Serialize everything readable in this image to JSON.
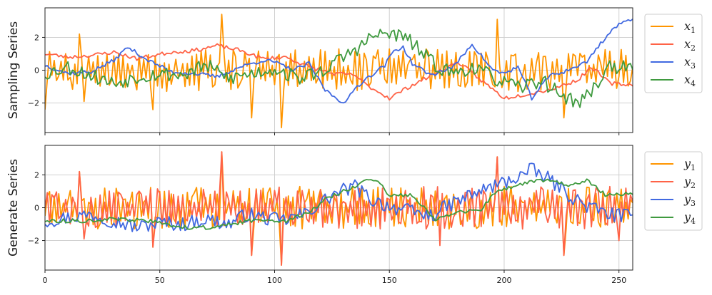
{
  "colors": {
    "orange": "#FF9500",
    "red": "#FF6347",
    "blue": "#4169E1",
    "green": "#3F9A3F"
  },
  "chart_data": [
    {
      "type": "line",
      "ylabel": "Sampling Series",
      "xlim": [
        0,
        256
      ],
      "ylim": [
        -3.8,
        3.8
      ],
      "xticks": [
        0,
        50,
        100,
        150,
        200,
        250
      ],
      "yticks": [
        -2,
        0,
        2
      ],
      "ytick_labels": [
        "−2",
        "0",
        "2"
      ],
      "grid": true,
      "legend_position": "outside-right",
      "series": [
        {
          "name": "x",
          "subscript": "1",
          "color": "#FF9500",
          "seed": 11,
          "kind": "spiky",
          "anchors": [
            [
              0,
              -2.4
            ],
            [
              15,
              2.2
            ],
            [
              17,
              -1.9
            ],
            [
              47,
              -2.4
            ],
            [
              77,
              3.4
            ],
            [
              90,
              -2.9
            ],
            [
              103,
              -3.5
            ],
            [
              197,
              3.1
            ],
            [
              226,
              -2.9
            ],
            [
              256,
              0.2
            ]
          ]
        },
        {
          "name": "x",
          "subscript": "2",
          "color": "#FF6347",
          "seed": 23,
          "kind": "smooth",
          "anchors": [
            [
              0,
              1.0
            ],
            [
              10,
              0.8
            ],
            [
              20,
              0.9
            ],
            [
              30,
              1.1
            ],
            [
              40,
              0.7
            ],
            [
              55,
              1.1
            ],
            [
              65,
              1.2
            ],
            [
              75,
              1.5
            ],
            [
              85,
              1.2
            ],
            [
              95,
              0.7
            ],
            [
              105,
              0.8
            ],
            [
              115,
              0.2
            ],
            [
              125,
              -0.2
            ],
            [
              135,
              -0.3
            ],
            [
              140,
              -0.9
            ],
            [
              150,
              -1.7
            ],
            [
              160,
              -0.9
            ],
            [
              170,
              -0.2
            ],
            [
              180,
              0.5
            ],
            [
              188,
              -0.4
            ],
            [
              200,
              -1.7
            ],
            [
              212,
              -1.4
            ],
            [
              222,
              -1.1
            ],
            [
              232,
              -0.6
            ],
            [
              238,
              0.2
            ],
            [
              246,
              -0.8
            ],
            [
              256,
              -0.9
            ]
          ]
        },
        {
          "name": "x",
          "subscript": "3",
          "color": "#4169E1",
          "seed": 37,
          "kind": "smooth",
          "anchors": [
            [
              0,
              0.3
            ],
            [
              10,
              -0.2
            ],
            [
              20,
              -0.1
            ],
            [
              30,
              0.6
            ],
            [
              36,
              1.4
            ],
            [
              45,
              0.6
            ],
            [
              55,
              -0.1
            ],
            [
              65,
              -0.2
            ],
            [
              75,
              -0.4
            ],
            [
              85,
              0.2
            ],
            [
              95,
              0.6
            ],
            [
              100,
              0.5
            ],
            [
              108,
              0.0
            ],
            [
              115,
              0.4
            ],
            [
              122,
              -1.2
            ],
            [
              128,
              -1.8
            ],
            [
              131,
              -2.0
            ],
            [
              135,
              -1.1
            ],
            [
              140,
              -0.5
            ],
            [
              148,
              0.3
            ],
            [
              152,
              1.2
            ],
            [
              156,
              1.4
            ],
            [
              160,
              0.4
            ],
            [
              168,
              -0.3
            ],
            [
              178,
              0.2
            ],
            [
              186,
              1.6
            ],
            [
              195,
              0.0
            ],
            [
              200,
              -0.2
            ],
            [
              206,
              0.2
            ],
            [
              212,
              -1.7
            ],
            [
              220,
              -0.3
            ],
            [
              226,
              -0.1
            ],
            [
              236,
              0.5
            ],
            [
              240,
              1.3
            ],
            [
              248,
              2.6
            ],
            [
              256,
              3.2
            ]
          ]
        },
        {
          "name": "x",
          "subscript": "4",
          "color": "#3F9A3F",
          "seed": 53,
          "kind": "medium",
          "anchors": [
            [
              0,
              -0.2
            ],
            [
              10,
              0.2
            ],
            [
              20,
              -0.3
            ],
            [
              30,
              -0.8
            ],
            [
              40,
              -0.4
            ],
            [
              50,
              -0.2
            ],
            [
              60,
              -0.3
            ],
            [
              70,
              0.3
            ],
            [
              80,
              -0.5
            ],
            [
              90,
              -0.2
            ],
            [
              100,
              0.1
            ],
            [
              110,
              -0.5
            ],
            [
              120,
              -0.1
            ],
            [
              127,
              0.5
            ],
            [
              132,
              1.0
            ],
            [
              137,
              1.4
            ],
            [
              142,
              2.0
            ],
            [
              147,
              2.2
            ],
            [
              152,
              2.2
            ],
            [
              158,
              1.9
            ],
            [
              164,
              1.1
            ],
            [
              170,
              0.3
            ],
            [
              178,
              -0.2
            ],
            [
              186,
              0.2
            ],
            [
              196,
              -0.5
            ],
            [
              206,
              -1.1
            ],
            [
              216,
              -0.6
            ],
            [
              226,
              -1.6
            ],
            [
              232,
              -2.0
            ],
            [
              238,
              -1.3
            ],
            [
              246,
              0.3
            ],
            [
              256,
              0.0
            ]
          ]
        }
      ]
    },
    {
      "type": "line",
      "ylabel": "Generate Series",
      "xlim": [
        0,
        256
      ],
      "ylim": [
        -3.8,
        3.8
      ],
      "xticks": [
        0,
        50,
        100,
        150,
        200,
        250
      ],
      "xtick_labels": [
        "0",
        "50",
        "100",
        "150",
        "200",
        "250"
      ],
      "yticks": [
        -2,
        0,
        2
      ],
      "ytick_labels": [
        "−2",
        "0",
        "2"
      ],
      "grid": true,
      "legend_position": "outside-right",
      "series": [
        {
          "name": "y",
          "subscript": "1",
          "color": "#FF9500",
          "seed": 71,
          "kind": "spiky",
          "anchors": [
            [
              0,
              -0.5
            ],
            [
              15,
              2.2
            ],
            [
              47,
              -2.4
            ],
            [
              77,
              3.4
            ],
            [
              90,
              -2.9
            ],
            [
              103,
              -3.5
            ],
            [
              197,
              3.1
            ],
            [
              226,
              -2.9
            ],
            [
              256,
              0.3
            ]
          ]
        },
        {
          "name": "y",
          "subscript": "2",
          "color": "#FF6347",
          "seed": 83,
          "kind": "spiky",
          "anchors": [
            [
              0,
              0.0
            ],
            [
              3,
              0.8
            ],
            [
              15,
              2.2
            ],
            [
              17,
              -1.9
            ],
            [
              47,
              -2.4
            ],
            [
              77,
              3.4
            ],
            [
              90,
              -2.9
            ],
            [
              103,
              -3.5
            ],
            [
              172,
              -2.3
            ],
            [
              197,
              3.1
            ],
            [
              226,
              -2.9
            ],
            [
              250,
              -2.0
            ],
            [
              256,
              0.4
            ]
          ]
        },
        {
          "name": "y",
          "subscript": "3",
          "color": "#4169E1",
          "seed": 97,
          "kind": "medium",
          "anchors": [
            [
              0,
              -0.8
            ],
            [
              10,
              -0.6
            ],
            [
              20,
              -0.4
            ],
            [
              30,
              -0.8
            ],
            [
              40,
              -1.2
            ],
            [
              50,
              -0.9
            ],
            [
              60,
              -1.0
            ],
            [
              70,
              -0.7
            ],
            [
              80,
              -1.0
            ],
            [
              88,
              -0.4
            ],
            [
              95,
              -0.6
            ],
            [
              103,
              -0.8
            ],
            [
              113,
              -0.4
            ],
            [
              120,
              0.3
            ],
            [
              127,
              0.9
            ],
            [
              135,
              1.3
            ],
            [
              142,
              0.5
            ],
            [
              150,
              0.1
            ],
            [
              158,
              -0.2
            ],
            [
              168,
              -0.5
            ],
            [
              178,
              0.3
            ],
            [
              186,
              0.8
            ],
            [
              195,
              1.3
            ],
            [
              203,
              1.7
            ],
            [
              212,
              2.3
            ],
            [
              220,
              1.7
            ],
            [
              228,
              0.8
            ],
            [
              236,
              0.1
            ],
            [
              246,
              -0.4
            ],
            [
              256,
              -0.6
            ]
          ]
        },
        {
          "name": "y",
          "subscript": "4",
          "color": "#3F9A3F",
          "seed": 113,
          "kind": "smooth",
          "anchors": [
            [
              0,
              -0.8
            ],
            [
              15,
              -0.8
            ],
            [
              30,
              -0.7
            ],
            [
              45,
              -0.8
            ],
            [
              60,
              -1.2
            ],
            [
              75,
              -1.2
            ],
            [
              85,
              -0.9
            ],
            [
              95,
              -0.7
            ],
            [
              105,
              -0.8
            ],
            [
              115,
              -0.3
            ],
            [
              122,
              0.5
            ],
            [
              128,
              0.9
            ],
            [
              135,
              1.3
            ],
            [
              140,
              1.7
            ],
            [
              145,
              1.6
            ],
            [
              150,
              0.7
            ],
            [
              160,
              0.8
            ],
            [
              170,
              -0.7
            ],
            [
              180,
              -0.3
            ],
            [
              190,
              -0.1
            ],
            [
              196,
              0.9
            ],
            [
              204,
              1.3
            ],
            [
              212,
              1.6
            ],
            [
              220,
              1.7
            ],
            [
              228,
              1.3
            ],
            [
              236,
              1.7
            ],
            [
              244,
              0.8
            ],
            [
              256,
              0.9
            ]
          ]
        }
      ]
    }
  ]
}
